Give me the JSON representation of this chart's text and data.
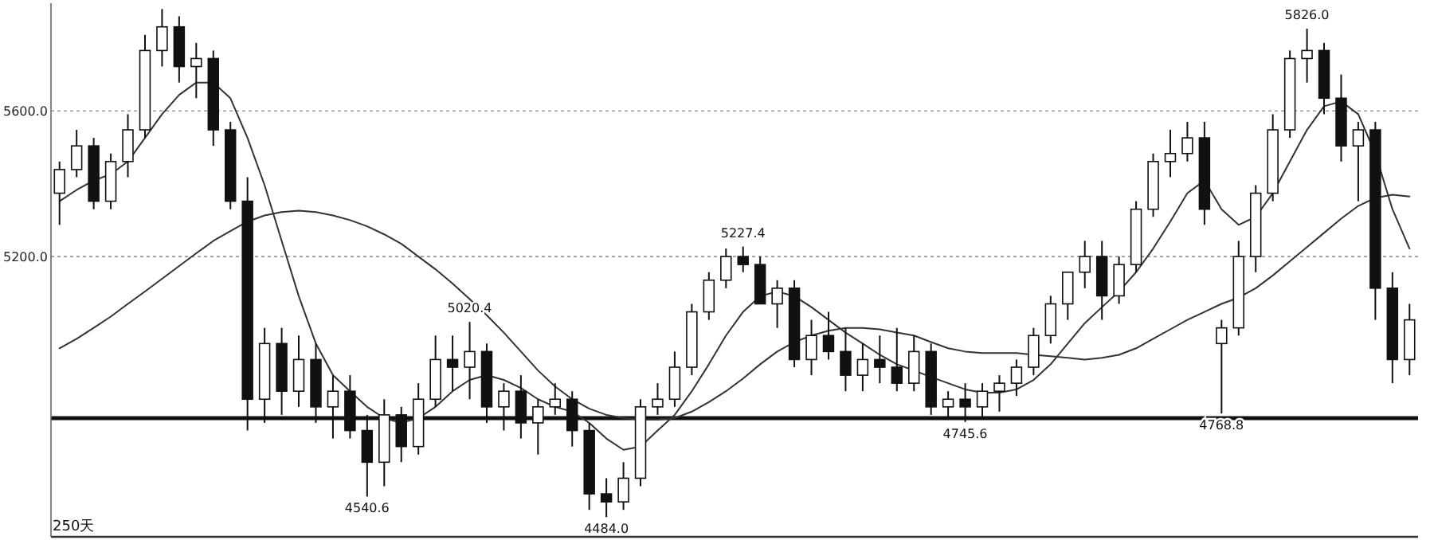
{
  "chart_data": {
    "type": "candlestick",
    "categories": [
      null,
      null,
      null,
      null,
      null,
      null,
      null,
      null,
      null,
      null,
      null,
      null,
      null,
      null,
      null,
      null,
      null,
      null,
      null,
      null,
      null,
      null,
      null,
      null,
      null,
      null,
      null,
      null,
      null,
      null,
      null,
      null,
      null,
      null,
      null,
      null,
      null,
      null,
      null,
      null,
      null,
      null,
      null,
      null,
      null,
      null,
      null,
      null,
      null,
      null,
      null,
      null,
      null,
      null,
      null,
      null,
      null,
      null,
      null,
      null,
      null,
      null,
      null,
      null,
      null,
      null,
      null,
      null,
      null,
      null,
      null,
      null,
      null,
      null,
      null,
      null,
      null,
      null,
      null,
      null
    ],
    "color": "#111111",
    "ohlc": [
      [
        5374,
        5461,
        5287,
        5439
      ],
      [
        5439,
        5548,
        5418,
        5504
      ],
      [
        5504,
        5526,
        5330,
        5352
      ],
      [
        5352,
        5483,
        5330,
        5461
      ],
      [
        5461,
        5591,
        5418,
        5548
      ],
      [
        5548,
        5809,
        5526,
        5766
      ],
      [
        5766,
        5880,
        5722,
        5831
      ],
      [
        5831,
        5860,
        5678,
        5722
      ],
      [
        5722,
        5787,
        5635,
        5744
      ],
      [
        5744,
        5766,
        5504,
        5548
      ],
      [
        5548,
        5570,
        5330,
        5352
      ],
      [
        5352,
        5418,
        4722,
        4808
      ],
      [
        4808,
        5004,
        4743,
        4961
      ],
      [
        4961,
        5004,
        4765,
        4830
      ],
      [
        4830,
        4983,
        4787,
        4917
      ],
      [
        4917,
        4961,
        4743,
        4787
      ],
      [
        4787,
        4874,
        4700,
        4830
      ],
      [
        4830,
        4874,
        4700,
        4722
      ],
      [
        4722,
        4765,
        4540.6,
        4635
      ],
      [
        4635,
        4808,
        4569,
        4765
      ],
      [
        4765,
        4787,
        4635,
        4678
      ],
      [
        4678,
        4852,
        4656,
        4808
      ],
      [
        4808,
        4983,
        4787,
        4917
      ],
      [
        4917,
        4983,
        4830,
        4896
      ],
      [
        4896,
        5020.4,
        4808,
        4939
      ],
      [
        4939,
        4961,
        4743,
        4787
      ],
      [
        4787,
        4852,
        4722,
        4830
      ],
      [
        4830,
        4874,
        4700,
        4743
      ],
      [
        4743,
        4808,
        4656,
        4787
      ],
      [
        4787,
        4852,
        4765,
        4808
      ],
      [
        4808,
        4830,
        4678,
        4722
      ],
      [
        4722,
        4743,
        4504,
        4548
      ],
      [
        4548,
        4591,
        4484,
        4526
      ],
      [
        4526,
        4635,
        4504,
        4591
      ],
      [
        4591,
        4808,
        4569,
        4787
      ],
      [
        4787,
        4852,
        4765,
        4808
      ],
      [
        4808,
        4939,
        4787,
        4896
      ],
      [
        4896,
        5070,
        4874,
        5048
      ],
      [
        5048,
        5157,
        5026,
        5135
      ],
      [
        5135,
        5222,
        5113,
        5200
      ],
      [
        5200,
        5227.4,
        5157,
        5178
      ],
      [
        5178,
        5200,
        5070,
        5070
      ],
      [
        5070,
        5135,
        5004,
        5113
      ],
      [
        5113,
        5135,
        4896,
        4917
      ],
      [
        4917,
        5026,
        4874,
        4983
      ],
      [
        4983,
        5048,
        4917,
        4939
      ],
      [
        4939,
        5004,
        4830,
        4874
      ],
      [
        4874,
        4961,
        4830,
        4917
      ],
      [
        4917,
        4983,
        4852,
        4896
      ],
      [
        4896,
        5004,
        4830,
        4852
      ],
      [
        4852,
        4983,
        4830,
        4939
      ],
      [
        4939,
        4961,
        4765,
        4787
      ],
      [
        4787,
        4830,
        4756,
        4808
      ],
      [
        4808,
        4852,
        4745.6,
        4787
      ],
      [
        4787,
        4852,
        4756,
        4830
      ],
      [
        4830,
        4874,
        4774,
        4852
      ],
      [
        4852,
        4917,
        4817,
        4896
      ],
      [
        4896,
        5004,
        4874,
        4983
      ],
      [
        4983,
        5092,
        4961,
        5070
      ],
      [
        5070,
        5157,
        5026,
        5157
      ],
      [
        5157,
        5243,
        5113,
        5200
      ],
      [
        5200,
        5243,
        5026,
        5092
      ],
      [
        5092,
        5200,
        5070,
        5178
      ],
      [
        5178,
        5352,
        5157,
        5330
      ],
      [
        5330,
        5483,
        5309,
        5461
      ],
      [
        5461,
        5548,
        5418,
        5483
      ],
      [
        5483,
        5570,
        5461,
        5526
      ],
      [
        5526,
        5570,
        5287,
        5330
      ],
      [
        4961,
        5026,
        4768.8,
        5004
      ],
      [
        5004,
        5243,
        4983,
        5200
      ],
      [
        5200,
        5396,
        5157,
        5374
      ],
      [
        5374,
        5591,
        5352,
        5548
      ],
      [
        5548,
        5766,
        5526,
        5744
      ],
      [
        5744,
        5826,
        5678,
        5766
      ],
      [
        5766,
        5787,
        5591,
        5635
      ],
      [
        5635,
        5700,
        5461,
        5504
      ],
      [
        5504,
        5570,
        5352,
        5548
      ],
      [
        5548,
        5570,
        5026,
        5113
      ],
      [
        5113,
        5157,
        4852,
        4917
      ],
      [
        4917,
        5070,
        4874,
        5026
      ]
    ],
    "series": [
      {
        "type": "line",
        "color": "#333333",
        "values": [
          4948,
          4974,
          5004,
          5035,
          5070,
          5104,
          5139,
          5174,
          5209,
          5243,
          5270,
          5296,
          5313,
          5322,
          5326,
          5322,
          5313,
          5300,
          5283,
          5261,
          5235,
          5200,
          5165,
          5126,
          5083,
          5039,
          4991,
          4939,
          4887,
          4843,
          4808,
          4782,
          4765,
          4756,
          4752,
          4752,
          4756,
          4774,
          4800,
          4830,
          4865,
          4904,
          4939,
          4965,
          4983,
          4996,
          5004,
          5004,
          5000,
          4991,
          4983,
          4965,
          4948,
          4939,
          4935,
          4935,
          4935,
          4930,
          4926,
          4922,
          4917,
          4922,
          4930,
          4948,
          4974,
          5000,
          5026,
          5048,
          5070,
          5087,
          5113,
          5148,
          5187,
          5226,
          5265,
          5304,
          5339,
          5361,
          5370,
          5365
        ]
      },
      {
        "type": "line",
        "color": "#333333",
        "values": [
          5352,
          5383,
          5409,
          5426,
          5461,
          5526,
          5591,
          5644,
          5678,
          5678,
          5635,
          5526,
          5396,
          5243,
          5091,
          4961,
          4874,
          4830,
          4787,
          4756,
          4743,
          4756,
          4787,
          4830,
          4861,
          4874,
          4861,
          4839,
          4808,
          4787,
          4774,
          4743,
          4700,
          4669,
          4678,
          4722,
          4765,
          4830,
          4904,
          4983,
          5048,
          5091,
          5104,
          5091,
          5061,
          5026,
          4991,
          4961,
          4930,
          4904,
          4887,
          4869,
          4852,
          4835,
          4826,
          4826,
          4835,
          4861,
          4904,
          4961,
          5017,
          5061,
          5104,
          5157,
          5222,
          5296,
          5374,
          5409,
          5330,
          5287,
          5309,
          5374,
          5461,
          5548,
          5613,
          5626,
          5591,
          5483,
          5330,
          5222
        ]
      }
    ],
    "ylim": [
      4430,
      5896
    ],
    "yticks": [
      {
        "value": 5600,
        "label": "5600.0"
      },
      {
        "value": 5200,
        "label": "5200.0"
      }
    ],
    "grid": "y",
    "tick_labels": "y",
    "ref_lines": [
      {
        "axis": "y",
        "value": 4756,
        "color": "#111111"
      }
    ],
    "annotations": [
      "250天",
      {
        "text": "5826.0",
        "y": 5826
      },
      {
        "text": "5227.4",
        "y": 5227.4
      },
      {
        "text": "5020.4",
        "y": 5020.4
      },
      {
        "text": "4540.6",
        "y": 4540.6
      },
      {
        "text": "4484.0",
        "y": 4484
      },
      {
        "text": "4745.6",
        "y": 4745.6
      },
      {
        "text": "4768.8",
        "y": 4768.8
      }
    ]
  }
}
